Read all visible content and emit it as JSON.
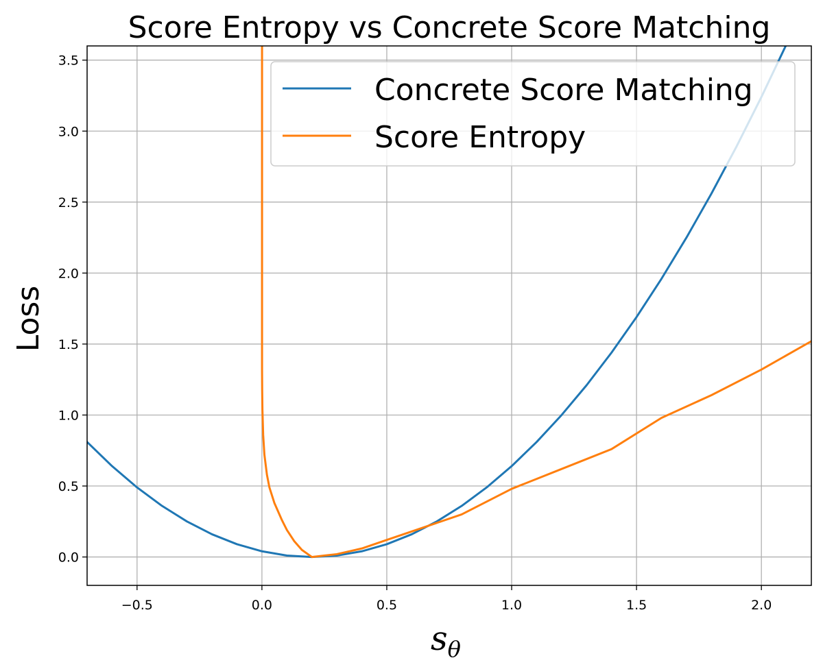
{
  "chart_data": {
    "type": "line",
    "title": "Score Entropy vs Concrete Score Matching",
    "xlabel": "s",
    "xlabel_subscript": "θ",
    "ylabel": "Loss",
    "xlim": [
      -0.7,
      2.2
    ],
    "ylim": [
      -0.2,
      3.6
    ],
    "grid": true,
    "legend_position": "top-right",
    "x_ticks": [
      -0.5,
      0.0,
      0.5,
      1.0,
      1.5,
      2.0
    ],
    "x_tick_labels": [
      "−0.5",
      "0.0",
      "0.5",
      "1.0",
      "1.5",
      "2.0"
    ],
    "y_ticks": [
      0.0,
      0.5,
      1.0,
      1.5,
      2.0,
      2.5,
      3.0,
      3.5
    ],
    "y_tick_labels": [
      "0.0",
      "0.5",
      "1.0",
      "1.5",
      "2.0",
      "2.5",
      "3.0",
      "3.5"
    ],
    "series": [
      {
        "name": "Concrete Score Matching",
        "color": "#1f77b4",
        "x": [
          -0.7,
          -0.6,
          -0.5,
          -0.4,
          -0.3,
          -0.2,
          -0.1,
          0.0,
          0.1,
          0.2,
          0.3,
          0.4,
          0.5,
          0.6,
          0.7,
          0.8,
          0.9,
          1.0,
          1.1,
          1.2,
          1.3,
          1.4,
          1.5,
          1.6,
          1.7,
          1.8,
          1.9,
          2.0,
          2.1
        ],
        "y": [
          0.81,
          0.64,
          0.49,
          0.36,
          0.25,
          0.16,
          0.09,
          0.04,
          0.01,
          0.0,
          0.01,
          0.04,
          0.09,
          0.16,
          0.25,
          0.36,
          0.49,
          0.64,
          0.81,
          1.0,
          1.21,
          1.44,
          1.69,
          1.96,
          2.25,
          2.56,
          2.89,
          3.24,
          3.61
        ]
      },
      {
        "name": "Score Entropy",
        "color": "#ff7f0e",
        "x": [
          0.0005,
          0.001,
          0.002,
          0.005,
          0.01,
          0.02,
          0.03,
          0.05,
          0.08,
          0.1,
          0.13,
          0.16,
          0.2,
          0.25,
          0.3,
          0.4,
          0.5,
          0.6,
          0.7,
          0.8,
          1.0,
          1.2,
          1.4,
          1.6,
          1.8,
          2.0,
          2.2
        ],
        "y": [
          1.32,
          1.18,
          1.04,
          0.86,
          0.72,
          0.58,
          0.49,
          0.38,
          0.26,
          0.19,
          0.11,
          0.05,
          0.0,
          0.01,
          0.02,
          0.06,
          0.12,
          0.18,
          0.24,
          0.3,
          0.48,
          0.62,
          0.76,
          0.98,
          1.14,
          1.32,
          1.52
        ]
      }
    ]
  }
}
